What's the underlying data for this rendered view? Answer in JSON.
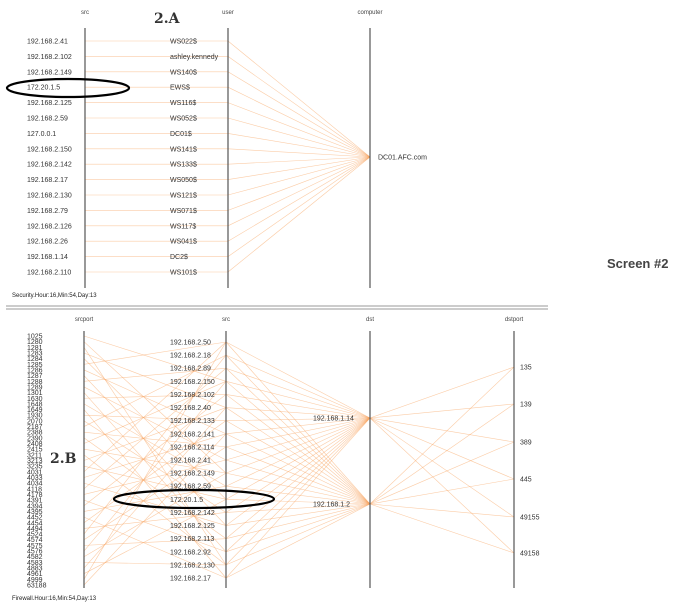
{
  "page": {
    "screen_label": "Screen #2"
  },
  "chart_data": [
    {
      "type": "parallel_coordinates",
      "tag": "2.A",
      "axes": [
        {
          "name": "src",
          "values": [
            "192.168.2.41",
            "192.168.2.102",
            "192.168.2.149",
            "172.20.1.5",
            "192.168.2.125",
            "192.168.2.59",
            "127.0.0.1",
            "192.168.2.150",
            "192.168.2.142",
            "192.168.2.17",
            "192.168.2.130",
            "192.168.2.79",
            "192.168.2.126",
            "192.168.2.26",
            "192.168.1.14",
            "192.168.2.110"
          ]
        },
        {
          "name": "user",
          "values": [
            "WS022$",
            "ashley.kennedy",
            "WS140$",
            "EWS$",
            "WS116$",
            "WS052$",
            "DC01$",
            "WS141$",
            "WS133$",
            "WS050$",
            "WS121$",
            "WS071$",
            "WS117$",
            "WS041$",
            "DC2$",
            "WS101$"
          ]
        },
        {
          "name": "computer",
          "values": [
            "DC01.AFC.com"
          ]
        }
      ],
      "highlighted": "172.20.1.5",
      "footer": "Security.Hour:16,Min:54,Day:13"
    },
    {
      "type": "parallel_coordinates",
      "tag": "2.B",
      "axes": [
        {
          "name": "srcport",
          "values": [
            "1025",
            "1280",
            "1281",
            "1283",
            "1284",
            "1285",
            "1286",
            "1287",
            "1288",
            "1289",
            "1301",
            "1630",
            "1648",
            "1649",
            "1930",
            "2070",
            "2187",
            "2388",
            "2390",
            "2408",
            "2415",
            "3211",
            "3213",
            "3235",
            "4031",
            "4033",
            "4034",
            "4118",
            "4178",
            "4391",
            "4394",
            "4395",
            "4452",
            "4454",
            "4494",
            "4524",
            "4574",
            "4575",
            "4576",
            "4582",
            "4583",
            "4883",
            "4961",
            "4999",
            "63188"
          ]
        },
        {
          "name": "src",
          "values": [
            "192.168.2.50",
            "192.168.2.18",
            "192.168.2.89",
            "192.168.2.150",
            "192.168.2.102",
            "192.168.2.40",
            "192.168.2.133",
            "192.168.2.141",
            "192.168.2.114",
            "192.168.2.41",
            "192.168.2.149",
            "192.168.2.59",
            "172.20.1.5",
            "192.168.2.142",
            "192.168.2.125",
            "192.168.2.113",
            "192.168.2.92",
            "192.168.2.130",
            "192.168.2.17"
          ]
        },
        {
          "name": "dst",
          "values": [
            "192.168.1.14",
            "192.168.1.2"
          ]
        },
        {
          "name": "dstport",
          "values": [
            "135",
            "139",
            "389",
            "445",
            "49155",
            "49158"
          ]
        }
      ],
      "highlighted": "172.20.1.5",
      "footer": "Firewall.Hour:16,Min:54,Day:13"
    }
  ]
}
